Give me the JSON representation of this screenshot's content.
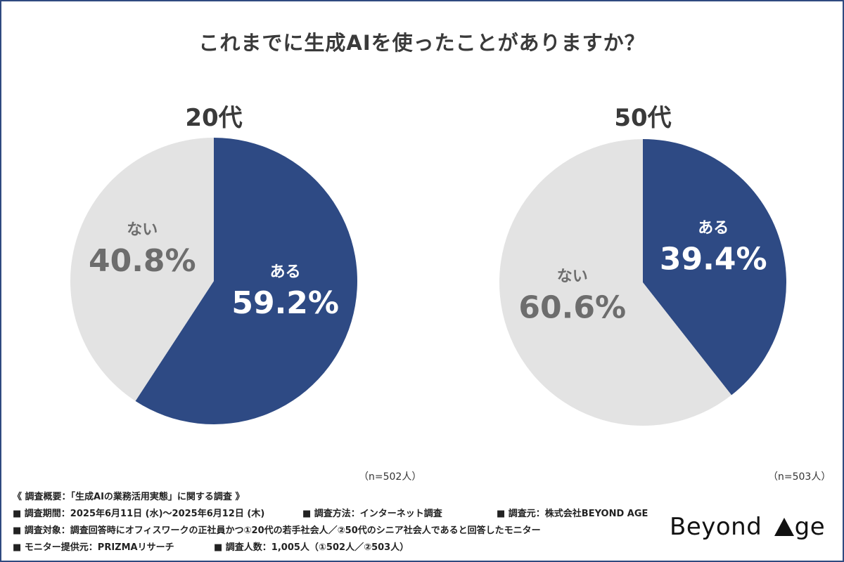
{
  "title": "これまでに生成AIを使ったことがありますか？",
  "colors": {
    "yes": "#2e4a84",
    "no": "#e3e3e3",
    "yes_text": "#ffffff",
    "no_text": "#6d6d6d",
    "frame": "#2f4a80"
  },
  "chart_data": [
    {
      "type": "pie",
      "title": "20代",
      "n_label": "（n=502人）",
      "slices": [
        {
          "label": "ある",
          "value": 59.2,
          "display": "59.2%"
        },
        {
          "label": "ない",
          "value": 40.8,
          "display": "40.8%"
        }
      ]
    },
    {
      "type": "pie",
      "title": "50代",
      "n_label": "（n=503人）",
      "slices": [
        {
          "label": "ある",
          "value": 39.4,
          "display": "39.4%"
        },
        {
          "label": "ない",
          "value": 60.6,
          "display": "60.6%"
        }
      ]
    }
  ],
  "notes": {
    "header": "《 調査概要：「生成AIの業務活用実態」に関する調査 》",
    "period": "■ 調査期間：2025年6月11日 (水)〜2025年6月12日 (木)",
    "method": "■ 調査方法：インターネット調査",
    "org": "■ 調査元：株式会社BEYOND AGE",
    "target": "■ 調査対象：調査回答時にオフィスワークの正社員かつ①20代の若手社会人／②50代のシニア社会人であると回答したモニター",
    "provider": "■ モニター提供元：PRIZMAリサーチ",
    "count": "■ 調査人数：1,005人（①502人／②503人）"
  },
  "logo": {
    "part1": "Beyond ",
    "part2": "ge"
  }
}
